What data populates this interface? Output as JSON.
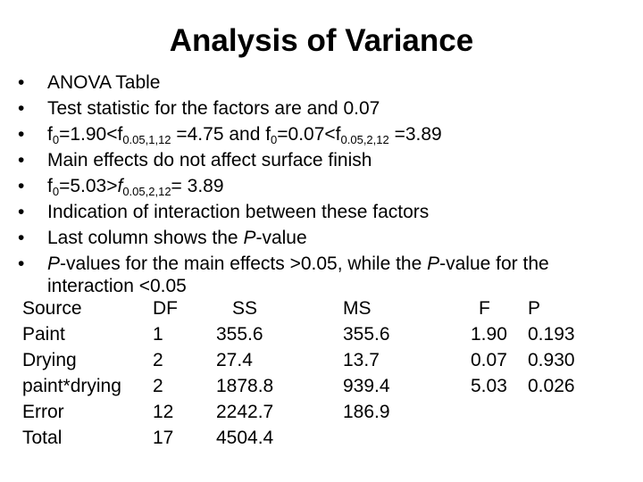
{
  "title": "Analysis of Variance",
  "bullet_char": "•",
  "bullets": [
    {
      "text": "ANOVA Table"
    },
    {
      "text": "Test statistic for the factors are and 0.07"
    },
    {
      "p1": "f",
      "s1": "0",
      "p2": "=1.90<f",
      "s2": "0.05,1,12",
      "p3": " =4.75 and f",
      "s3": "0",
      "p4": "=0.07<f",
      "s4": "0.05,2,12",
      "p5": " =3.89"
    },
    {
      "text": "Main effects do not affect surface finish"
    },
    {
      "p1": "f",
      "s1": "0",
      "p2": "=5.03>",
      "p2i": "f",
      "s2": "0.05,2,12",
      "p3": "= 3.89"
    },
    {
      "text": "Indication of interaction between these factors"
    },
    {
      "p1": "Last column shows the ",
      "i1": "P",
      "p2": "-value"
    },
    {
      "i1": "P",
      "p1": "-values for the main effects >0.05, while the ",
      "i2": "P",
      "p2": "-value for the",
      "line2": "interaction <0.05"
    }
  ],
  "table": {
    "header": {
      "source": "Source",
      "df": "DF",
      "ss": "SS",
      "ms": "MS",
      "f": "F",
      "p": "P"
    },
    "rows": [
      {
        "source": "Paint",
        "df": "1",
        "ss": "355.6",
        "ms": "355.6",
        "f": "1.90",
        "p": "0.193"
      },
      {
        "source": "Drying",
        "df": "2",
        "ss": "27.4",
        "ms": "13.7",
        "f": "0.07",
        "p": "0.930"
      },
      {
        "source": "paint*drying",
        "df": "2",
        "ss": "1878.8",
        "ms": "939.4",
        "f": "5.03",
        "p": "0.026"
      },
      {
        "source": "Error",
        "df": "12",
        "ss": "2242.7",
        "ms": "186.9",
        "f": "",
        "p": ""
      },
      {
        "source": "Total",
        "df": "17",
        "ss": "4504.4",
        "ms": "",
        "f": "",
        "p": ""
      }
    ]
  }
}
